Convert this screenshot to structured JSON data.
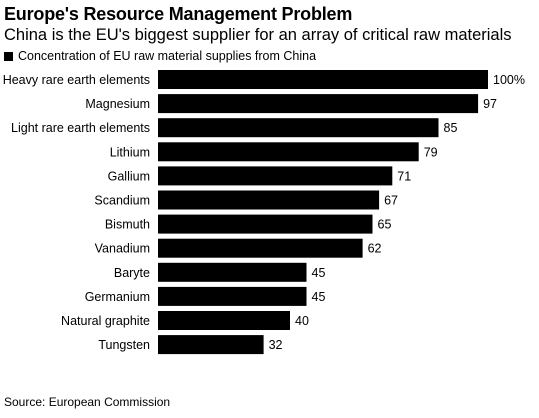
{
  "title": "Europe's Resource Management Problem",
  "subtitle": "China is the EU's biggest supplier for an array of critical raw materials",
  "source": "Source: European Commission",
  "chart_data": {
    "type": "bar",
    "orientation": "horizontal",
    "categories": [
      "Heavy rare earth elements",
      "Magnesium",
      "Light rare earth elements",
      "Lithium",
      "Gallium",
      "Scandium",
      "Bismuth",
      "Vanadium",
      "Baryte",
      "Germanium",
      "Natural graphite",
      "Tungsten"
    ],
    "series": [
      {
        "name": "Concentration of EU raw material supplies from China",
        "values": [
          100,
          97,
          85,
          79,
          71,
          67,
          65,
          62,
          45,
          45,
          40,
          32
        ],
        "color": "#000000"
      }
    ],
    "value_labels": [
      "100%",
      "97",
      "85",
      "79",
      "71",
      "67",
      "65",
      "62",
      "45",
      "45",
      "40",
      "32"
    ],
    "xlim": [
      0,
      100
    ],
    "grid": false,
    "legend_position": "top-left"
  }
}
